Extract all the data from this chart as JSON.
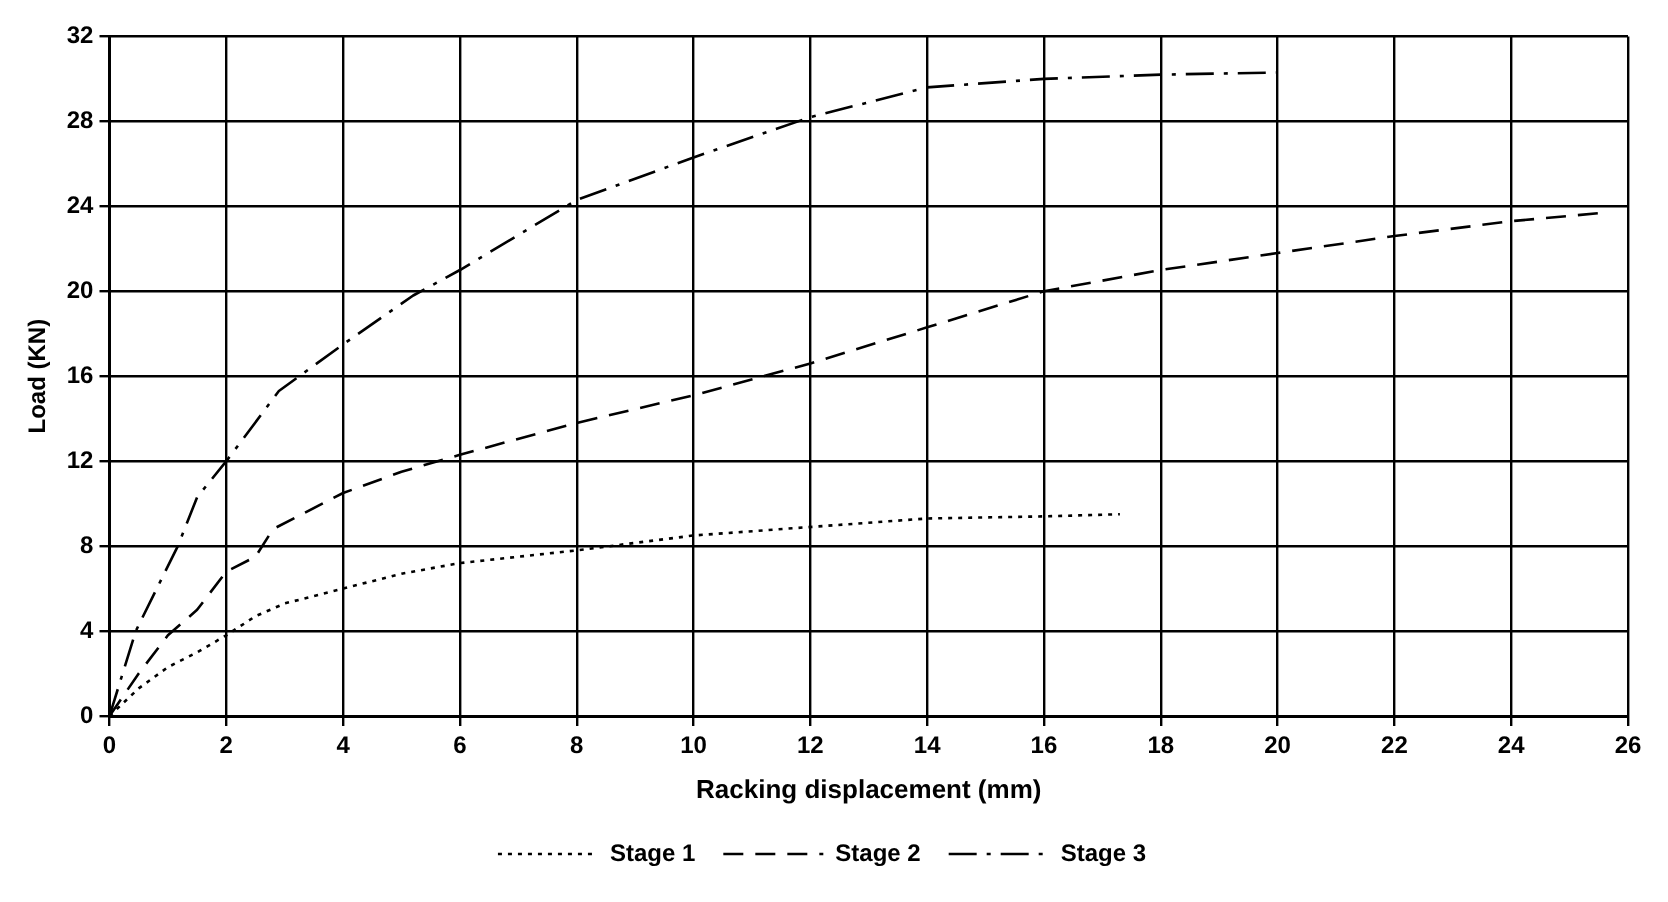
{
  "chart_data": {
    "type": "line",
    "xlabel": "Racking displacement (mm)",
    "ylabel": "Load (KN)",
    "xlim": [
      0,
      26
    ],
    "xticks": [
      0,
      2,
      4,
      6,
      8,
      10,
      12,
      14,
      16,
      18,
      20,
      22,
      24,
      26
    ],
    "ylim": [
      0,
      32
    ],
    "yticks": [
      0,
      4,
      8,
      12,
      16,
      20,
      24,
      28,
      32
    ],
    "grid": true,
    "legend": "bottom",
    "marker": "none",
    "series": [
      {
        "name": "Stage 1",
        "color": "#000000",
        "line_style": "dotted",
        "x": [
          0,
          0.5,
          1,
          1.5,
          2,
          2.5,
          3,
          4,
          5,
          6,
          8,
          10,
          12,
          14,
          16,
          17.3
        ],
        "values": [
          0,
          1.3,
          2.3,
          3,
          3.8,
          4.7,
          5.3,
          6,
          6.7,
          7.2,
          7.8,
          8.5,
          8.9,
          9.3,
          9.4,
          9.5
        ]
      },
      {
        "name": "Stage 2",
        "color": "#000000",
        "line_style": "dashed",
        "x": [
          0,
          0.5,
          1,
          1.5,
          2,
          2.5,
          2.8,
          4,
          5,
          6,
          8,
          10,
          12,
          14,
          16,
          18,
          20,
          22,
          24,
          25.6
        ],
        "values": [
          0,
          2,
          3.8,
          5,
          6.8,
          7.5,
          8.8,
          10.5,
          11.5,
          12.3,
          13.8,
          15.1,
          16.6,
          18.3,
          20,
          21,
          21.8,
          22.6,
          23.3,
          23.7
        ]
      },
      {
        "name": "Stage 3",
        "color": "#000000",
        "line_style": "dashdot",
        "x": [
          0,
          0.45,
          1.17,
          1.5,
          2,
          2.9,
          4,
          5.2,
          6,
          8,
          10,
          12,
          14,
          16,
          18,
          20
        ],
        "values": [
          0,
          4,
          8,
          10.3,
          12,
          15.3,
          17.5,
          19.8,
          21,
          24.3,
          26.3,
          28.2,
          29.6,
          30,
          30.2,
          30.3
        ]
      }
    ]
  }
}
